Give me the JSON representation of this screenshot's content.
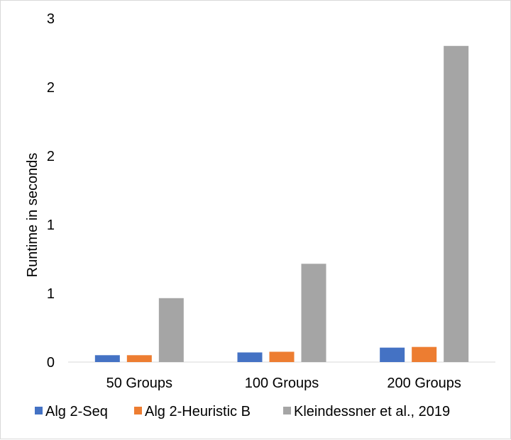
{
  "chart_data": {
    "type": "bar",
    "title": "",
    "xlabel": "",
    "ylabel": "Runtime in seconds",
    "categories": [
      "50 Groups",
      "100 Groups",
      "200 Groups"
    ],
    "y_ticks": [
      {
        "value": 0,
        "label": "0"
      },
      {
        "value": 0.5,
        "label": "1"
      },
      {
        "value": 1.0,
        "label": "1"
      },
      {
        "value": 1.5,
        "label": "2"
      },
      {
        "value": 2.0,
        "label": "2"
      },
      {
        "value": 2.5,
        "label": "3"
      }
    ],
    "ylim": [
      0,
      2.5
    ],
    "grid": false,
    "legend_position": "bottom",
    "series": [
      {
        "name": "Alg 2-Seq",
        "color": "#4472C4",
        "values": [
          0.05,
          0.07,
          0.105
        ]
      },
      {
        "name": "Alg 2-Heuristic B",
        "color": "#ED7D31",
        "values": [
          0.05,
          0.075,
          0.11
        ]
      },
      {
        "name": "Kleindessner et al., 2019",
        "color": "#A5A5A5",
        "values": [
          0.465,
          0.715,
          2.3
        ]
      }
    ]
  }
}
